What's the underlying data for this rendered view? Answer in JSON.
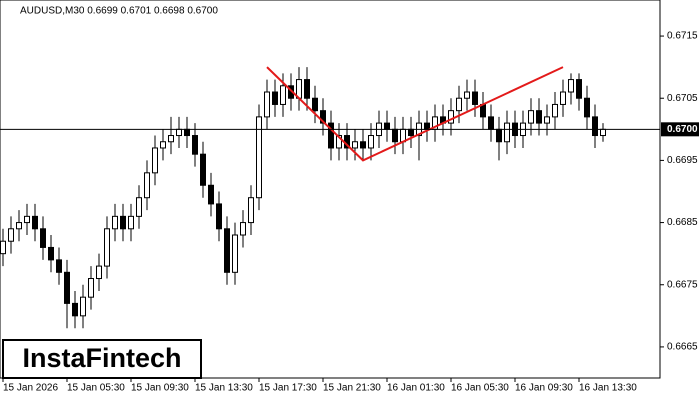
{
  "chart_data": {
    "type": "candlestick",
    "title": "AUDUSD,M30  0.6699 0.6701 0.6698 0.6700",
    "watermark": "InstaFintech",
    "categories": [
      "15 Jan 2026",
      null,
      null,
      null,
      null,
      null,
      null,
      null,
      "15 Jan 05:30",
      null,
      null,
      null,
      null,
      null,
      null,
      null,
      "15 Jan 09:30",
      null,
      null,
      null,
      null,
      null,
      null,
      null,
      "15 Jan 13:30",
      null,
      null,
      null,
      null,
      null,
      null,
      null,
      "15 Jan 17:30",
      null,
      null,
      null,
      null,
      null,
      null,
      null,
      "15 Jan 21:30",
      null,
      null,
      null,
      null,
      null,
      null,
      null,
      "16 Jan 01:30",
      null,
      null,
      null,
      null,
      null,
      null,
      null,
      "16 Jan 05:30",
      null,
      null,
      null,
      null,
      null,
      null,
      null,
      "16 Jan 09:30",
      null,
      null,
      null,
      null,
      null,
      null,
      null,
      "16 Jan 13:30",
      null,
      null,
      null
    ],
    "open": [
      0.668,
      0.6682,
      0.6684,
      0.6685,
      0.6686,
      0.6684,
      0.6681,
      0.6679,
      0.6677,
      0.6672,
      0.667,
      0.6673,
      0.6676,
      0.6678,
      0.6684,
      0.6686,
      0.6684,
      0.6686,
      0.6689,
      0.6693,
      0.6697,
      0.6698,
      0.6699,
      0.67,
      0.6699,
      0.6696,
      0.6691,
      0.6688,
      0.6684,
      0.6677,
      0.6683,
      0.6685,
      0.6689,
      0.6702,
      0.6706,
      0.6704,
      0.6707,
      0.6705,
      0.6708,
      0.6705,
      0.6703,
      0.6701,
      0.6697,
      0.6699,
      0.6697,
      0.6698,
      0.6697,
      0.6699,
      0.6701,
      0.67,
      0.6698,
      0.67,
      0.6699,
      0.6701,
      0.67,
      0.6702,
      0.6701,
      0.6703,
      0.6705,
      0.6706,
      0.6704,
      0.6702,
      0.67,
      0.6698,
      0.6701,
      0.6699,
      0.6701,
      0.6703,
      0.6701,
      0.6702,
      0.6704,
      0.6706,
      0.6708,
      0.6705,
      0.6702,
      0.6699
    ],
    "high": [
      0.6684,
      0.6686,
      0.6687,
      0.6688,
      0.6688,
      0.6686,
      0.6683,
      0.6681,
      0.6679,
      0.6674,
      0.6675,
      0.6678,
      0.668,
      0.6686,
      0.6688,
      0.6688,
      0.6688,
      0.6691,
      0.6695,
      0.6699,
      0.67,
      0.6702,
      0.6702,
      0.6702,
      0.6701,
      0.6698,
      0.6693,
      0.669,
      0.6686,
      0.6685,
      0.6687,
      0.6691,
      0.6704,
      0.6708,
      0.6708,
      0.6709,
      0.6709,
      0.671,
      0.671,
      0.6707,
      0.6705,
      0.6703,
      0.6701,
      0.6701,
      0.67,
      0.67,
      0.6701,
      0.6703,
      0.6703,
      0.6702,
      0.6702,
      0.6702,
      0.6703,
      0.6703,
      0.6704,
      0.6704,
      0.6705,
      0.6707,
      0.6708,
      0.6708,
      0.6706,
      0.6704,
      0.6702,
      0.6703,
      0.6703,
      0.6703,
      0.6705,
      0.6705,
      0.6704,
      0.6706,
      0.6708,
      0.6709,
      0.6709,
      0.6707,
      0.6704,
      0.6701
    ],
    "low": [
      0.6678,
      0.668,
      0.6682,
      0.6683,
      0.6682,
      0.6679,
      0.6677,
      0.6675,
      0.6668,
      0.6668,
      0.6668,
      0.6671,
      0.6674,
      0.6676,
      0.6682,
      0.6682,
      0.6682,
      0.6684,
      0.6687,
      0.6691,
      0.6695,
      0.6696,
      0.6697,
      0.6697,
      0.6694,
      0.6689,
      0.6686,
      0.6682,
      0.6675,
      0.6675,
      0.6681,
      0.6683,
      0.6687,
      0.67,
      0.6702,
      0.6702,
      0.6703,
      0.6703,
      0.6703,
      0.6701,
      0.6699,
      0.6695,
      0.6695,
      0.6695,
      0.6695,
      0.6695,
      0.6695,
      0.6697,
      0.6698,
      0.6696,
      0.6696,
      0.6697,
      0.6695,
      0.6698,
      0.6698,
      0.6699,
      0.6699,
      0.6701,
      0.6703,
      0.6702,
      0.67,
      0.6698,
      0.6695,
      0.6696,
      0.6697,
      0.6697,
      0.6699,
      0.6699,
      0.6699,
      0.67,
      0.6702,
      0.6704,
      0.6703,
      0.67,
      0.6697,
      0.6698
    ],
    "close": [
      0.6682,
      0.6684,
      0.6685,
      0.6686,
      0.6684,
      0.6681,
      0.6679,
      0.6677,
      0.6672,
      0.667,
      0.6673,
      0.6676,
      0.6678,
      0.6684,
      0.6686,
      0.6684,
      0.6686,
      0.6689,
      0.6693,
      0.6697,
      0.6698,
      0.6699,
      0.67,
      0.6699,
      0.6696,
      0.6691,
      0.6688,
      0.6684,
      0.6677,
      0.6683,
      0.6685,
      0.6689,
      0.6702,
      0.6706,
      0.6704,
      0.6707,
      0.6705,
      0.6708,
      0.6705,
      0.6703,
      0.6701,
      0.6697,
      0.6699,
      0.6697,
      0.6698,
      0.6697,
      0.6699,
      0.6701,
      0.67,
      0.6698,
      0.67,
      0.6699,
      0.6701,
      0.67,
      0.6702,
      0.6701,
      0.6703,
      0.6705,
      0.6706,
      0.6704,
      0.6702,
      0.67,
      0.6698,
      0.6701,
      0.6699,
      0.6701,
      0.6703,
      0.6701,
      0.6702,
      0.6704,
      0.6706,
      0.6708,
      0.6705,
      0.6702,
      0.6699,
      0.67
    ],
    "ylim": [
      0.666,
      0.67208
    ],
    "yticks": [
      0.6715,
      0.6705,
      0.6695,
      0.6685,
      0.6675,
      0.6665
    ],
    "current_price": {
      "value": 0.67,
      "label": "0.6700"
    },
    "pattern": {
      "color": "#e31a1a",
      "x_index": [
        33,
        45,
        70
      ],
      "values": [
        0.671,
        0.6695,
        0.671
      ]
    }
  }
}
